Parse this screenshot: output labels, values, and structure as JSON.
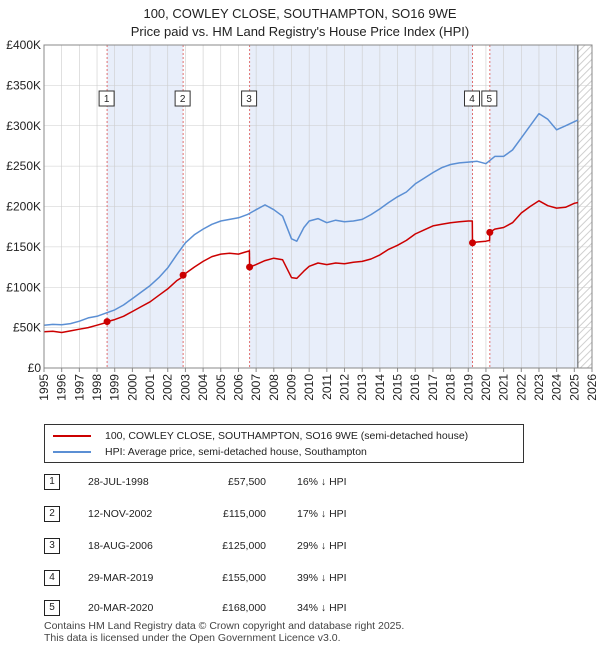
{
  "title_line1": "100, COWLEY CLOSE, SOUTHAMPTON, SO16 9WE",
  "title_line2": "Price paid vs. HM Land Registry's House Price Index (HPI)",
  "legend": {
    "property": "100, COWLEY CLOSE, SOUTHAMPTON, SO16 9WE (semi-detached house)",
    "hpi": "HPI: Average price, semi-detached house, Southampton"
  },
  "colors": {
    "property": "#cc0000",
    "hpi": "#5b8fd4",
    "shade": "#e8eefa",
    "grid": "#cccccc"
  },
  "sales": [
    {
      "num": "1",
      "date": "28-JUL-1998",
      "price": "£57,500",
      "hpi": "16% ↓ HPI"
    },
    {
      "num": "2",
      "date": "12-NOV-2002",
      "price": "£115,000",
      "hpi": "17% ↓ HPI"
    },
    {
      "num": "3",
      "date": "18-AUG-2006",
      "price": "£125,000",
      "hpi": "29% ↓ HPI"
    },
    {
      "num": "4",
      "date": "29-MAR-2019",
      "price": "£155,000",
      "hpi": "39% ↓ HPI"
    },
    {
      "num": "5",
      "date": "20-MAR-2020",
      "price": "£168,000",
      "hpi": "34% ↓ HPI"
    }
  ],
  "footer_line1": "Contains HM Land Registry data © Crown copyright and database right 2025.",
  "footer_line2": "This data is licensed under the Open Government Licence v3.0.",
  "chart_data": {
    "type": "line",
    "title": "100, COWLEY CLOSE, SOUTHAMPTON, SO16 9WE — Price paid vs. HM Land Registry's House Price Index (HPI)",
    "xlabel": "",
    "ylabel": "",
    "xlim": [
      1995,
      2026
    ],
    "ylim": [
      0,
      400000
    ],
    "y_ticks": [
      0,
      50000,
      100000,
      150000,
      200000,
      250000,
      300000,
      350000,
      400000
    ],
    "y_tick_labels": [
      "£0",
      "£50K",
      "£100K",
      "£150K",
      "£200K",
      "£250K",
      "£300K",
      "£350K",
      "£400K"
    ],
    "x_ticks": [
      1995,
      1996,
      1997,
      1998,
      1999,
      2000,
      2001,
      2002,
      2003,
      2004,
      2005,
      2006,
      2007,
      2008,
      2009,
      2010,
      2011,
      2012,
      2013,
      2014,
      2015,
      2016,
      2017,
      2018,
      2019,
      2020,
      2021,
      2022,
      2023,
      2024,
      2025,
      2026
    ],
    "x_tick_labels": [
      "1995",
      "1996",
      "1997",
      "1998",
      "1999",
      "2000",
      "2001",
      "2002",
      "2003",
      "2004",
      "2005",
      "2006",
      "2007",
      "2008",
      "2009",
      "2010",
      "2011",
      "2012",
      "2013",
      "2014",
      "2015",
      "2016",
      "2017",
      "2018",
      "2019",
      "2020",
      "2021",
      "2022",
      "2023",
      "2024",
      "2025",
      "2026"
    ],
    "shaded_periods": [
      [
        1998.57,
        2002.87
      ],
      [
        2006.63,
        2019.24
      ],
      [
        2020.22,
        2025.2
      ]
    ],
    "future_from": 2025.2,
    "sale_markers": [
      {
        "label": "1",
        "x": 1998.57,
        "y": 57500
      },
      {
        "label": "2",
        "x": 2002.87,
        "y": 115000
      },
      {
        "label": "3",
        "x": 2006.63,
        "y": 125000
      },
      {
        "label": "4",
        "x": 2019.24,
        "y": 155000
      },
      {
        "label": "5",
        "x": 2020.22,
        "y": 168000
      }
    ],
    "series": [
      {
        "name": "100, COWLEY CLOSE, SOUTHAMPTON, SO16 9WE (semi-detached house)",
        "color": "#cc0000",
        "x": [
          1995.0,
          1995.5,
          1996.0,
          1996.5,
          1997.0,
          1997.5,
          1998.0,
          1998.56,
          1998.57,
          1999.0,
          1999.5,
          2000.0,
          2000.5,
          2001.0,
          2001.5,
          2002.0,
          2002.5,
          2002.86,
          2002.87,
          2003.5,
          2004.0,
          2004.5,
          2005.0,
          2005.5,
          2006.0,
          2006.3,
          2006.62,
          2006.63,
          2007.0,
          2007.5,
          2008.0,
          2008.5,
          2009.0,
          2009.3,
          2009.7,
          2010.0,
          2010.5,
          2011.0,
          2011.5,
          2012.0,
          2012.5,
          2013.0,
          2013.5,
          2014.0,
          2014.5,
          2015.0,
          2015.5,
          2016.0,
          2016.5,
          2017.0,
          2017.5,
          2018.0,
          2018.5,
          2019.0,
          2019.23,
          2019.24,
          2019.5,
          2020.0,
          2020.21,
          2020.22,
          2020.5,
          2021.0,
          2021.5,
          2022.0,
          2022.5,
          2023.0,
          2023.5,
          2024.0,
          2024.5,
          2025.0,
          2025.2
        ],
        "values": [
          45000,
          45500,
          44000,
          46000,
          48000,
          50000,
          53000,
          56500,
          57500,
          60000,
          64000,
          70000,
          76000,
          82000,
          90000,
          98000,
          108000,
          113000,
          115000,
          125000,
          132000,
          138000,
          141000,
          142000,
          141000,
          143000,
          145000,
          125000,
          128000,
          133000,
          136000,
          134000,
          112000,
          111000,
          120000,
          126000,
          130000,
          128000,
          130000,
          129000,
          131000,
          132000,
          135000,
          140000,
          147000,
          152000,
          158000,
          166000,
          171000,
          176000,
          178000,
          180000,
          181000,
          182000,
          182000,
          155000,
          156000,
          157000,
          158000,
          168000,
          172000,
          174000,
          180000,
          192000,
          200000,
          207000,
          201000,
          198000,
          199000,
          204000,
          205000
        ]
      },
      {
        "name": "HPI: Average price, semi-detached house, Southampton",
        "color": "#5b8fd4",
        "x": [
          1995.0,
          1995.5,
          1996.0,
          1996.5,
          1997.0,
          1997.5,
          1998.0,
          1998.5,
          1999.0,
          1999.5,
          2000.0,
          2000.5,
          2001.0,
          2001.5,
          2002.0,
          2002.5,
          2003.0,
          2003.5,
          2004.0,
          2004.5,
          2005.0,
          2005.5,
          2006.0,
          2006.5,
          2007.0,
          2007.5,
          2008.0,
          2008.5,
          2009.0,
          2009.3,
          2009.7,
          2010.0,
          2010.5,
          2011.0,
          2011.5,
          2012.0,
          2012.5,
          2013.0,
          2013.5,
          2014.0,
          2014.5,
          2015.0,
          2015.5,
          2016.0,
          2016.5,
          2017.0,
          2017.5,
          2018.0,
          2018.5,
          2019.0,
          2019.5,
          2020.0,
          2020.5,
          2021.0,
          2021.5,
          2022.0,
          2022.5,
          2023.0,
          2023.5,
          2024.0,
          2024.5,
          2025.0,
          2025.2
        ],
        "values": [
          53000,
          54000,
          53500,
          55000,
          58000,
          62000,
          64000,
          68000,
          72000,
          78000,
          86000,
          94000,
          102000,
          112000,
          124000,
          140000,
          155000,
          165000,
          172000,
          178000,
          182000,
          184000,
          186000,
          190000,
          196000,
          202000,
          196000,
          188000,
          160000,
          157000,
          174000,
          182000,
          185000,
          180000,
          183000,
          181000,
          182000,
          184000,
          190000,
          197000,
          205000,
          212000,
          218000,
          228000,
          235000,
          242000,
          248000,
          252000,
          254000,
          255000,
          256000,
          253000,
          262000,
          262000,
          270000,
          285000,
          300000,
          315000,
          308000,
          295000,
          300000,
          305000,
          307000
        ]
      }
    ]
  }
}
